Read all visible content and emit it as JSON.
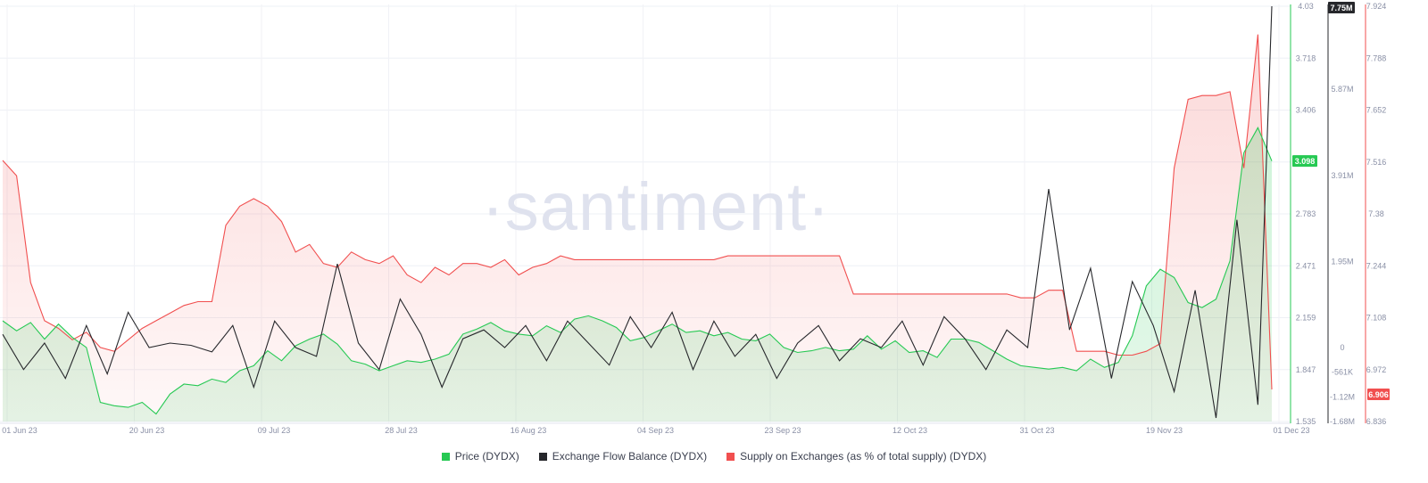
{
  "watermark": "·santiment·",
  "chart_data": {
    "type": "line",
    "x_dates": [
      "01 Jun 23",
      "20 Jun 23",
      "09 Jul 23",
      "28 Jul 23",
      "16 Aug 23",
      "04 Sep 23",
      "23 Sep 23",
      "12 Oct 23",
      "31 Oct 23",
      "19 Nov 23",
      "01 Dec 23"
    ],
    "x_range": [
      "01 Jun 23",
      "01 Dec 23"
    ],
    "grid": true,
    "legend_position": "bottom-center",
    "axes": {
      "price": {
        "range": [
          1.535,
          4.03
        ],
        "ticks": [
          "4.03",
          "3.718",
          "3.406",
          "3.094",
          "2.783",
          "2.471",
          "2.159",
          "1.847",
          "1.535"
        ]
      },
      "flow": {
        "range": [
          -1680000,
          7750000
        ],
        "ticks": [
          "7.75M",
          "5.87M",
          "3.91M",
          "1.95M",
          "0",
          "-561K",
          "-1.12M",
          "-1.68M"
        ]
      },
      "supply": {
        "range": [
          6.836,
          7.924
        ],
        "ticks": [
          "7.924",
          "7.788",
          "7.652",
          "7.516",
          "7.38",
          "7.244",
          "7.108",
          "6.972",
          "6.836"
        ]
      }
    },
    "series": [
      {
        "name": "Price (DYDX)",
        "color": "#26c953",
        "axis": "price",
        "last_value_label": "3.098",
        "x": [
          0,
          2,
          4,
          6,
          8,
          10,
          12,
          14,
          16,
          18,
          20,
          22,
          24,
          26,
          28,
          30,
          32,
          34,
          36,
          38,
          40,
          42,
          44,
          46,
          48,
          50,
          52,
          54,
          56,
          58,
          60,
          62,
          64,
          66,
          68,
          70,
          72,
          74,
          76,
          78,
          80,
          82,
          84,
          86,
          88,
          90,
          92,
          94,
          96,
          98,
          100,
          102,
          104,
          106,
          108,
          110,
          112,
          114,
          116,
          118,
          120,
          122,
          124,
          126,
          128,
          130,
          132,
          134,
          136,
          138,
          140,
          142,
          144,
          146,
          148,
          150,
          152,
          154,
          156,
          158,
          160,
          162,
          164,
          166,
          168,
          170,
          172,
          174,
          176,
          178,
          180,
          182
        ],
        "values": [
          2.14,
          2.08,
          2.13,
          2.03,
          2.12,
          2.04,
          1.98,
          1.65,
          1.63,
          1.62,
          1.65,
          1.58,
          1.7,
          1.76,
          1.75,
          1.79,
          1.77,
          1.84,
          1.87,
          1.96,
          1.9,
          1.99,
          2.03,
          2.06,
          2.0,
          1.9,
          1.88,
          1.84,
          1.87,
          1.9,
          1.89,
          1.91,
          1.94,
          2.06,
          2.09,
          2.13,
          2.08,
          2.06,
          2.05,
          2.11,
          2.07,
          2.15,
          2.17,
          2.14,
          2.1,
          2.02,
          2.04,
          2.08,
          2.12,
          2.07,
          2.08,
          2.05,
          2.07,
          2.03,
          2.02,
          2.06,
          1.98,
          1.95,
          1.96,
          1.98,
          1.96,
          1.97,
          2.05,
          1.97,
          2.02,
          1.95,
          1.96,
          1.92,
          2.03,
          2.03,
          2.01,
          1.96,
          1.91,
          1.87,
          1.86,
          1.85,
          1.86,
          1.84,
          1.91,
          1.86,
          1.89,
          2.05,
          2.35,
          2.45,
          2.4,
          2.25,
          2.22,
          2.27,
          2.5,
          3.15,
          3.3,
          3.1
        ]
      },
      {
        "name": "Exchange Flow Balance (DYDX)",
        "color": "#26272b",
        "axis": "flow",
        "last_value_label": "7.75M",
        "x": [
          0,
          3,
          6,
          9,
          12,
          15,
          18,
          21,
          24,
          27,
          30,
          33,
          36,
          39,
          42,
          45,
          48,
          51,
          54,
          57,
          60,
          63,
          66,
          69,
          72,
          75,
          78,
          81,
          84,
          87,
          90,
          93,
          96,
          99,
          102,
          105,
          108,
          111,
          114,
          117,
          120,
          123,
          126,
          129,
          132,
          135,
          138,
          141,
          144,
          147,
          150,
          153,
          156,
          159,
          162,
          165,
          168,
          171,
          174,
          177,
          180,
          182
        ],
        "values": [
          0.3,
          -0.5,
          0.1,
          -0.7,
          0.5,
          -0.6,
          0.8,
          0.0,
          0.1,
          0.05,
          -0.1,
          0.5,
          -0.9,
          0.6,
          0.0,
          -0.2,
          1.9,
          0.1,
          -0.5,
          1.1,
          0.3,
          -0.9,
          0.2,
          0.4,
          0.0,
          0.5,
          -0.3,
          0.6,
          0.1,
          -0.4,
          0.7,
          0.0,
          0.8,
          -0.5,
          0.6,
          -0.2,
          0.3,
          -0.7,
          0.1,
          0.5,
          -0.3,
          0.2,
          0.0,
          0.6,
          -0.4,
          0.7,
          0.2,
          -0.5,
          0.4,
          0.0,
          3.6,
          0.4,
          1.8,
          -0.7,
          1.5,
          0.5,
          -1.0,
          1.3,
          -1.6,
          2.9,
          -1.3,
          7.75
        ]
      },
      {
        "name": "Supply on Exchanges (as % of total supply) (DYDX)",
        "color": "#f14f4f",
        "axis": "supply",
        "last_value_label": "6.906",
        "x": [
          0,
          2,
          4,
          6,
          8,
          10,
          12,
          14,
          16,
          18,
          20,
          22,
          24,
          26,
          28,
          30,
          32,
          34,
          36,
          38,
          40,
          42,
          44,
          46,
          48,
          50,
          52,
          54,
          56,
          58,
          60,
          62,
          64,
          66,
          68,
          70,
          72,
          74,
          76,
          78,
          80,
          82,
          84,
          86,
          88,
          90,
          92,
          94,
          96,
          98,
          100,
          102,
          104,
          106,
          108,
          110,
          112,
          114,
          116,
          118,
          120,
          122,
          124,
          126,
          128,
          130,
          132,
          134,
          136,
          138,
          140,
          142,
          144,
          146,
          148,
          150,
          152,
          154,
          156,
          158,
          160,
          162,
          164,
          166,
          168,
          170,
          172,
          174,
          176,
          178,
          180,
          182
        ],
        "values": [
          7.52,
          7.48,
          7.2,
          7.1,
          7.08,
          7.05,
          7.07,
          7.03,
          7.02,
          7.05,
          7.08,
          7.1,
          7.12,
          7.14,
          7.15,
          7.15,
          7.35,
          7.4,
          7.42,
          7.4,
          7.36,
          7.28,
          7.3,
          7.25,
          7.24,
          7.28,
          7.26,
          7.25,
          7.27,
          7.22,
          7.2,
          7.24,
          7.22,
          7.25,
          7.25,
          7.24,
          7.26,
          7.22,
          7.24,
          7.25,
          7.27,
          7.26,
          7.26,
          7.26,
          7.26,
          7.26,
          7.26,
          7.26,
          7.26,
          7.26,
          7.26,
          7.26,
          7.27,
          7.27,
          7.27,
          7.27,
          7.27,
          7.27,
          7.27,
          7.27,
          7.27,
          7.17,
          7.17,
          7.17,
          7.17,
          7.17,
          7.17,
          7.17,
          7.17,
          7.17,
          7.17,
          7.17,
          7.17,
          7.16,
          7.16,
          7.18,
          7.18,
          7.02,
          7.02,
          7.02,
          7.01,
          7.01,
          7.02,
          7.04,
          7.5,
          7.68,
          7.69,
          7.69,
          7.7,
          7.5,
          7.85,
          6.92
        ]
      }
    ]
  },
  "legend": [
    {
      "label": "Price (DYDX)",
      "color": "#26c953"
    },
    {
      "label": "Exchange Flow Balance (DYDX)",
      "color": "#26272b"
    },
    {
      "label": "Supply on Exchanges (as % of total supply) (DYDX)",
      "color": "#f14f4f"
    }
  ]
}
